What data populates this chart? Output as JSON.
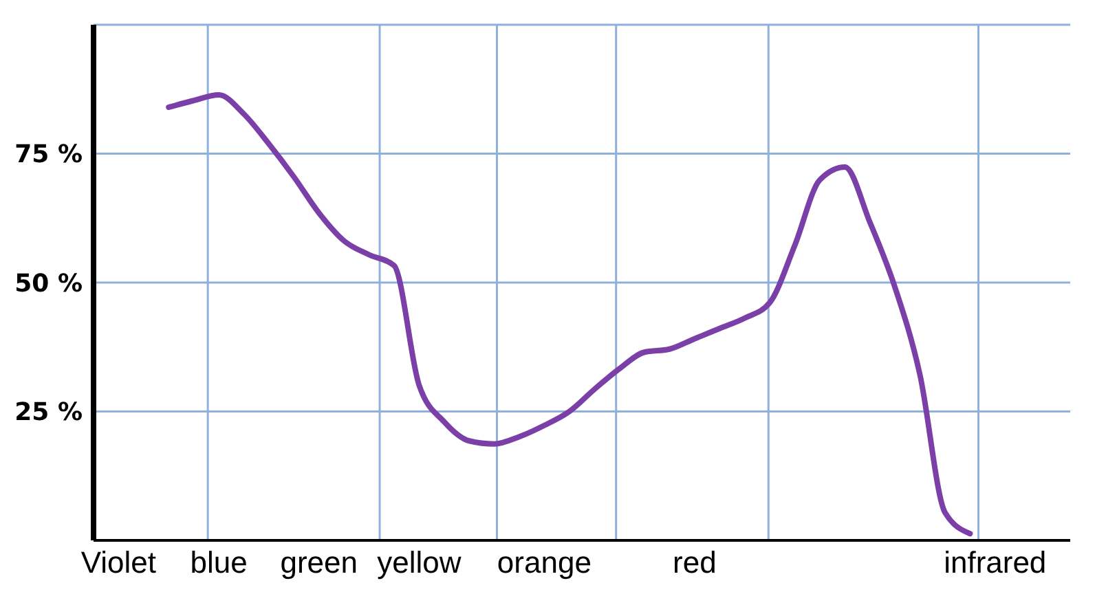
{
  "chart_data": {
    "type": "line",
    "categories": [
      null,
      "Violet",
      null,
      null,
      null,
      "blue",
      null,
      null,
      null,
      "green",
      null,
      null,
      null,
      "yellow",
      null,
      null,
      null,
      null,
      "orange",
      null,
      null,
      null,
      null,
      null,
      "red",
      null,
      null,
      null,
      null,
      null,
      null,
      null,
      null,
      null,
      null,
      null,
      "infrared",
      null,
      null,
      null
    ],
    "series": [
      {
        "color": "#7b3fa8",
        "values": [
          null,
          null,
          null,
          84,
          85.3,
          86.4,
          82.7,
          76.9,
          70.5,
          63.5,
          58.1,
          55.4,
          53.3,
          30.1,
          23.0,
          19.3,
          18.7,
          20.1,
          22.3,
          25.0,
          29.3,
          33.3,
          36.5,
          37.1,
          39.1,
          41.1,
          43.1,
          46.1,
          57.2,
          69.9,
          72.4,
          61.7,
          49.1,
          32.1,
          5.4,
          1.3,
          null,
          null,
          null,
          null
        ]
      }
    ],
    "ylim": [
      0,
      100
    ],
    "yticks": [
      {
        "value": 25,
        "label": "25 %"
      },
      {
        "value": 50,
        "label": "50 %"
      },
      {
        "value": 75,
        "label": "75 %"
      }
    ],
    "grid": true,
    "marker": "none",
    "line_style": "solid",
    "legend": false
  }
}
